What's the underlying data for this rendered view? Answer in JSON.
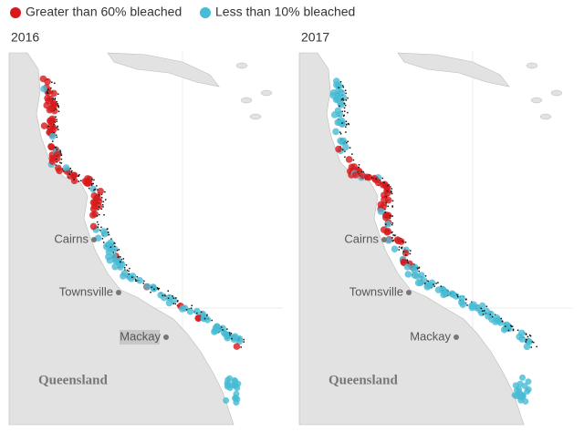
{
  "legend": [
    {
      "label": "Greater than 60% bleached",
      "color": "#d7191c"
    },
    {
      "label": "Less than 10% bleached",
      "color": "#47bcd4"
    }
  ],
  "panels": [
    {
      "title": "2016",
      "cities": [
        "Cairns",
        "Townsville",
        "Mackay"
      ],
      "region": "Queensland"
    },
    {
      "title": "2017",
      "cities": [
        "Cairns",
        "Townsville",
        "Mackay"
      ],
      "region": "Queensland"
    }
  ]
}
